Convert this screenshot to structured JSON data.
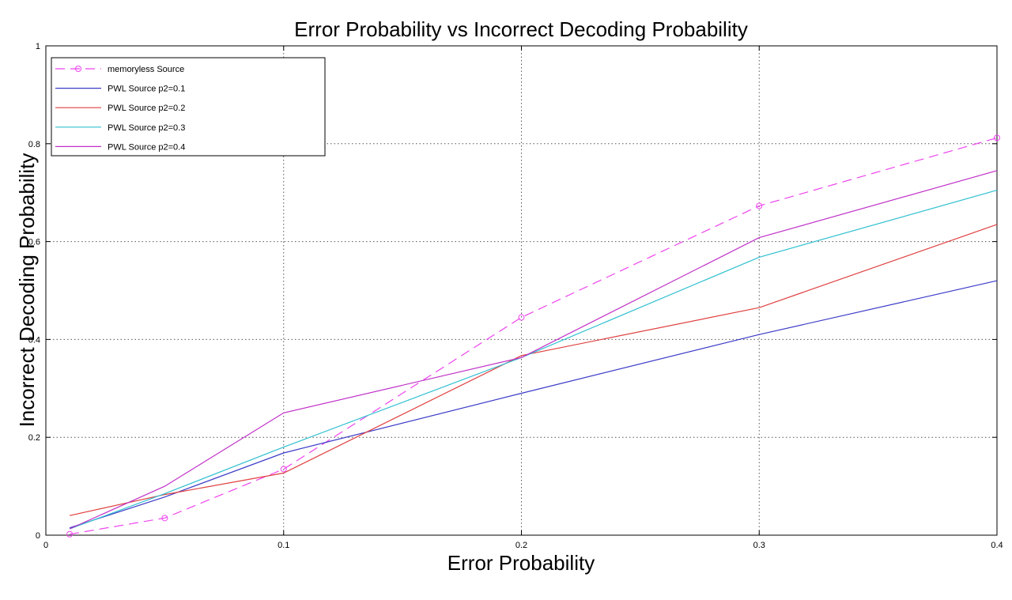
{
  "chart_data": {
    "type": "line",
    "title": "Error Probability vs Incorrect Decoding Probability",
    "xlabel": "Error Probability",
    "ylabel": "Incorrect Decoding Probability",
    "xlim": [
      0,
      0.4
    ],
    "ylim": [
      0,
      1
    ],
    "xticks": [
      0,
      0.1,
      0.2,
      0.3,
      0.4
    ],
    "xtick_labels": [
      "0",
      "0.1",
      "0.2",
      "0.3",
      "0.4"
    ],
    "yticks": [
      0,
      0.2,
      0.4,
      0.6,
      0.8,
      1
    ],
    "ytick_labels": [
      "0",
      "0.2",
      "0.4",
      "0.6",
      "0.8",
      "1"
    ],
    "grid": true,
    "legend_position": "top-left",
    "series": [
      {
        "name": "memoryless Source",
        "color": "#ee44ee",
        "style": "dashed",
        "marker": "circle",
        "x": [
          0.01,
          0.05,
          0.1,
          0.2,
          0.3,
          0.4
        ],
        "y": [
          0.002,
          0.035,
          0.135,
          0.445,
          0.673,
          0.812
        ]
      },
      {
        "name": "PWL Source p2=0.1",
        "color": "#3c3cc8",
        "style": "solid",
        "marker": "none",
        "x": [
          0.01,
          0.05,
          0.1,
          0.2,
          0.3,
          0.4
        ],
        "y": [
          0.015,
          0.078,
          0.168,
          0.29,
          0.41,
          0.52
        ]
      },
      {
        "name": "PWL Source p2=0.2",
        "color": "#e04040",
        "style": "solid",
        "marker": "none",
        "x": [
          0.01,
          0.05,
          0.1,
          0.2,
          0.3,
          0.4
        ],
        "y": [
          0.04,
          0.083,
          0.127,
          0.367,
          0.465,
          0.635
        ]
      },
      {
        "name": "PWL Source p2=0.3",
        "color": "#30c0d0",
        "style": "solid",
        "marker": "none",
        "x": [
          0.01,
          0.05,
          0.1,
          0.2,
          0.3,
          0.4
        ],
        "y": [
          0.013,
          0.085,
          0.18,
          0.363,
          0.568,
          0.705
        ]
      },
      {
        "name": "PWL Source p2=0.4",
        "color": "#c030c8",
        "style": "solid",
        "marker": "none",
        "x": [
          0.01,
          0.05,
          0.1,
          0.2,
          0.3,
          0.4
        ],
        "y": [
          0.013,
          0.1,
          0.25,
          0.363,
          0.608,
          0.745
        ]
      }
    ]
  }
}
